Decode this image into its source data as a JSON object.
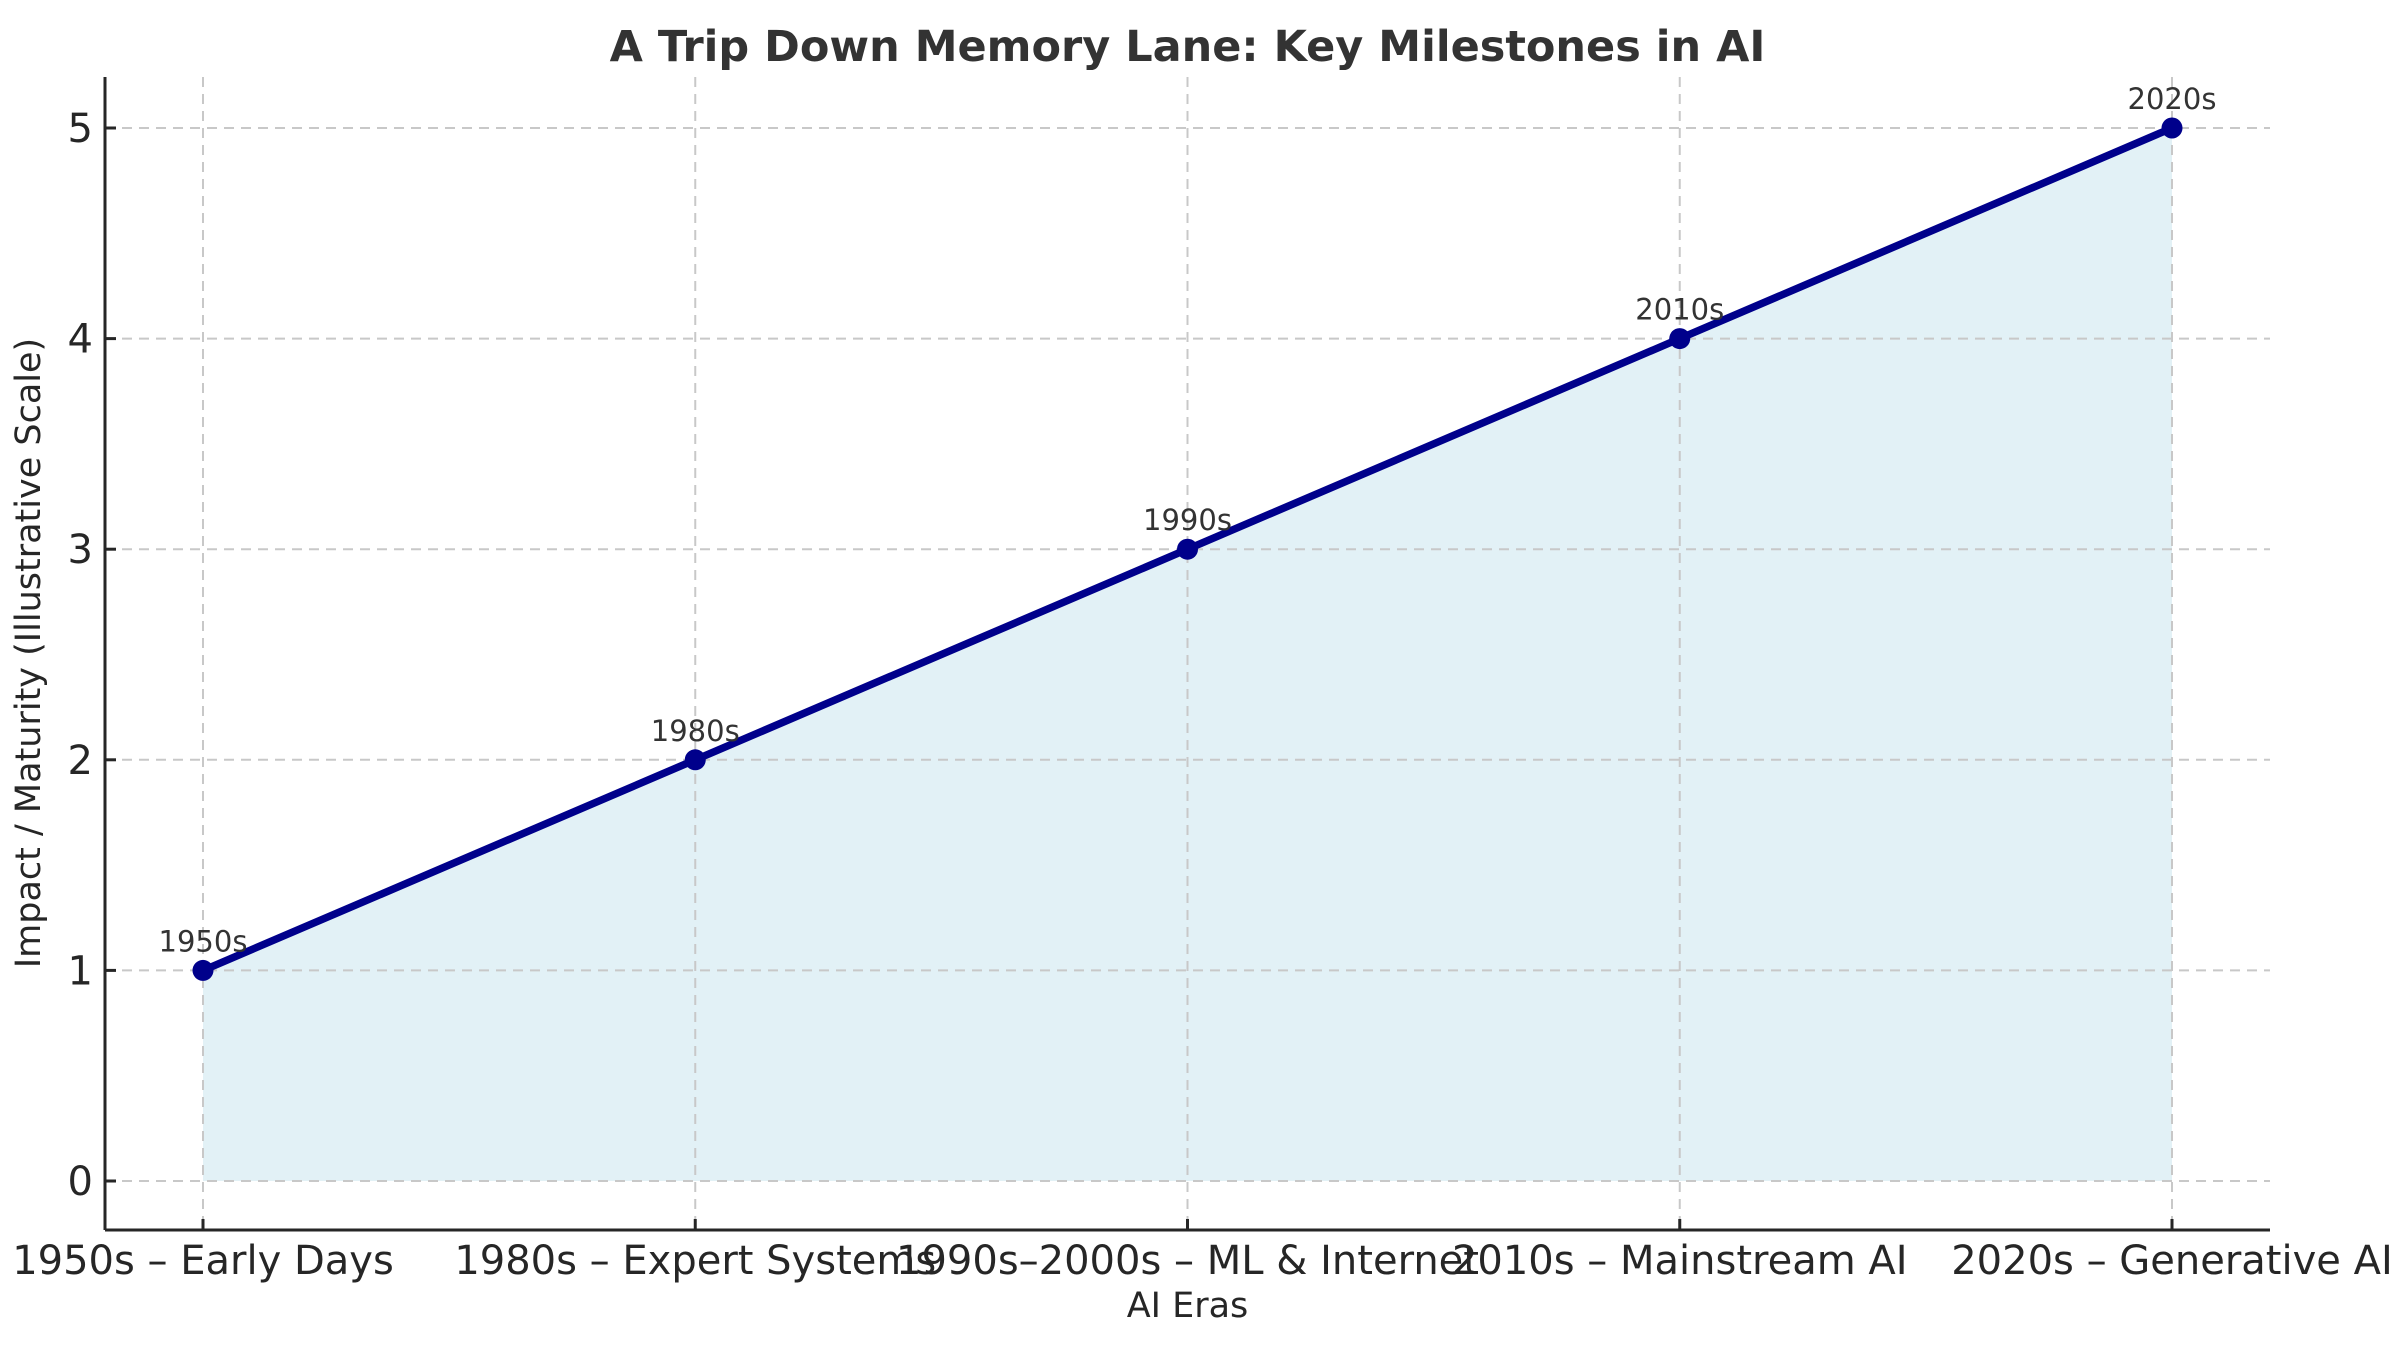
{
  "chart_data": {
    "type": "line",
    "title": "A Trip Down Memory Lane: Key Milestones in AI",
    "xlabel": "AI Eras",
    "ylabel": "Impact / Maturity (Illustrative Scale)",
    "categories": [
      "1950s – Early Days",
      "1980s – Expert Systems",
      "1990s–2000s – ML & Internet",
      "2010s – Mainstream AI",
      "2020s – Generative AI"
    ],
    "values": [
      1,
      2,
      3,
      4,
      5
    ],
    "point_labels": [
      "1950s",
      "1980s",
      "1990s",
      "2010s",
      "2020s"
    ],
    "yticks": [
      "0",
      "1",
      "2",
      "3",
      "4",
      "5"
    ],
    "ylim": [
      -0.25,
      5.25
    ],
    "grid": true,
    "grid_style": "dashed",
    "legend": "none",
    "area_fill": true,
    "colors": {
      "line": "#00008b",
      "marker": "#00008b",
      "fill": "#add8e6",
      "fill_opacity": "0.35",
      "grid": "#c8c8c8",
      "axis": "#262626",
      "tick_label": "#262626",
      "title": "#333333",
      "annotation": "#333333"
    }
  }
}
